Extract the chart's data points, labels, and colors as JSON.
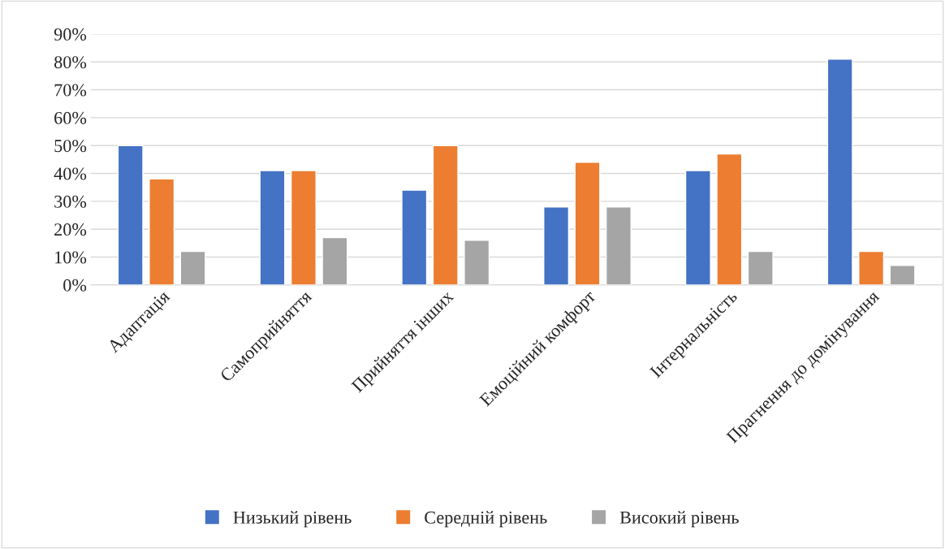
{
  "chart_data": {
    "type": "bar",
    "categories": [
      "Адаптація",
      "Самоприйняття",
      "Прийняття інших",
      "Емоційний комфорт",
      "Інтернальність",
      "Прагнення до домінування"
    ],
    "series": [
      {
        "name": "Низький рівень",
        "color": "#4472c4",
        "values": [
          50,
          41,
          34,
          28,
          41,
          81
        ]
      },
      {
        "name": "Середній рівень",
        "color": "#ed7d31",
        "values": [
          38,
          41,
          50,
          44,
          47,
          12
        ]
      },
      {
        "name": "Високий рівень",
        "color": "#a5a5a5",
        "values": [
          12,
          17,
          16,
          28,
          12,
          7
        ]
      }
    ],
    "ylim": [
      0,
      90
    ],
    "yticks": [
      {
        "value": 0,
        "label": "0%"
      },
      {
        "value": 10,
        "label": "10%"
      },
      {
        "value": 20,
        "label": "20%"
      },
      {
        "value": 30,
        "label": "30%"
      },
      {
        "value": 40,
        "label": "40%"
      },
      {
        "value": 50,
        "label": "50%"
      },
      {
        "value": 60,
        "label": "60%"
      },
      {
        "value": 70,
        "label": "70%"
      },
      {
        "value": 80,
        "label": "80%"
      },
      {
        "value": 90,
        "label": "90%"
      }
    ],
    "grid": "y",
    "legend": "bottom"
  }
}
